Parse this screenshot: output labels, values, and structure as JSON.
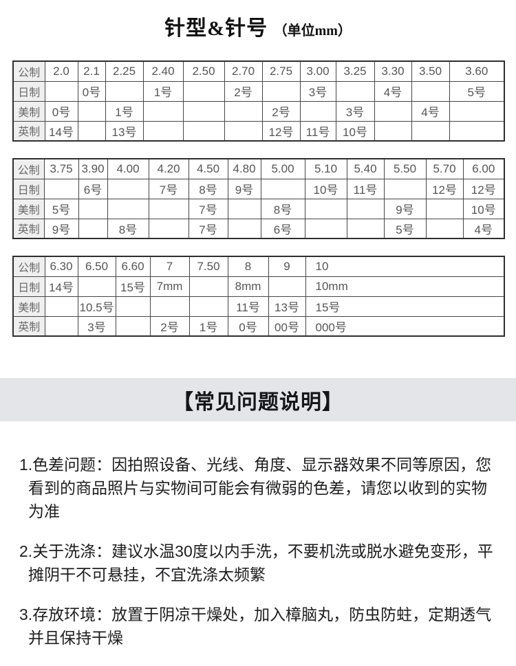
{
  "page_title": {
    "main": "针型&针号",
    "unit": "（单位mm）"
  },
  "size_tables": [
    {
      "rows": [
        {
          "header": "公制",
          "cells": [
            "2.0",
            "2.1",
            "2.25",
            "2.40",
            "2.50",
            "2.70",
            "2.75",
            "3.00",
            "3.25",
            "3.30",
            "3.50",
            "3.60"
          ]
        },
        {
          "header": "日制",
          "cells": [
            "",
            "0号",
            "",
            "1号",
            "",
            "2号",
            "",
            "3号",
            "",
            "4号",
            "",
            "5号"
          ]
        },
        {
          "header": "美制",
          "cells": [
            "0号",
            "",
            "1号",
            "",
            "",
            "",
            "2号",
            "",
            "3号",
            "",
            "4号",
            ""
          ]
        },
        {
          "header": "英制",
          "cells": [
            "14号",
            "",
            "13号",
            "",
            "",
            "",
            "12号",
            "11号",
            "10号",
            "",
            "",
            ""
          ]
        }
      ]
    },
    {
      "rows": [
        {
          "header": "公制",
          "cells": [
            "3.75",
            "3.90",
            "4.00",
            "4.20",
            "4.50",
            "4.80",
            "5.00",
            "5.10",
            "5.40",
            "5.50",
            "5.70",
            "6.00"
          ]
        },
        {
          "header": "日制",
          "cells": [
            "",
            "6号",
            "",
            "7号",
            "8号",
            "9号",
            "",
            "10号",
            "11号",
            "",
            "12号",
            "12号"
          ]
        },
        {
          "header": "美制",
          "cells": [
            "5号",
            "",
            "",
            "",
            "7号",
            "",
            "8号",
            "",
            "",
            "9号",
            "",
            "10号"
          ]
        },
        {
          "header": "英制",
          "cells": [
            "9号",
            "",
            "8号",
            "",
            "7号",
            "",
            "6号",
            "",
            "",
            "5号",
            "",
            "4号"
          ]
        }
      ]
    },
    {
      "rows": [
        {
          "header": "公制",
          "cells": [
            "6.30",
            "6.50",
            "6.60",
            "7",
            "7.50",
            "8",
            "9",
            "10"
          ]
        },
        {
          "header": "日制",
          "cells": [
            "14号",
            "",
            "15号",
            "7mm",
            "",
            "8mm",
            "",
            "10mm"
          ]
        },
        {
          "header": "美制",
          "cells": [
            "",
            "10.5号",
            "",
            "",
            "",
            "11号",
            "13号",
            "15号"
          ]
        },
        {
          "header": "英制",
          "cells": [
            "",
            "3号",
            "",
            "2号",
            "1号",
            "0号",
            "00号",
            "000号"
          ]
        }
      ]
    }
  ],
  "faq": {
    "heading": "【常见问题说明】",
    "items": [
      "1.色差问题：因拍照设备、光线、角度、显示器效果不同等原因，您看到的商品照片与实物间可能会有微弱的色差，请您以收到的实物为准",
      "2.关于洗涤：建议水温30度以内手洗，不要机洗或脱水避免变形，平摊阴干不可悬挂，不宜洗涤太频繁",
      "3.存放环境：放置于阴凉干燥处，加入樟脑丸，防虫防蛀，定期透气并且保持干燥"
    ]
  },
  "colors": {
    "band_bg": "#e4e5e9",
    "table_header_bg": "#efefef",
    "table_border": "#454545",
    "cell_text": "#555555",
    "body_text": "#1d1d1f"
  }
}
